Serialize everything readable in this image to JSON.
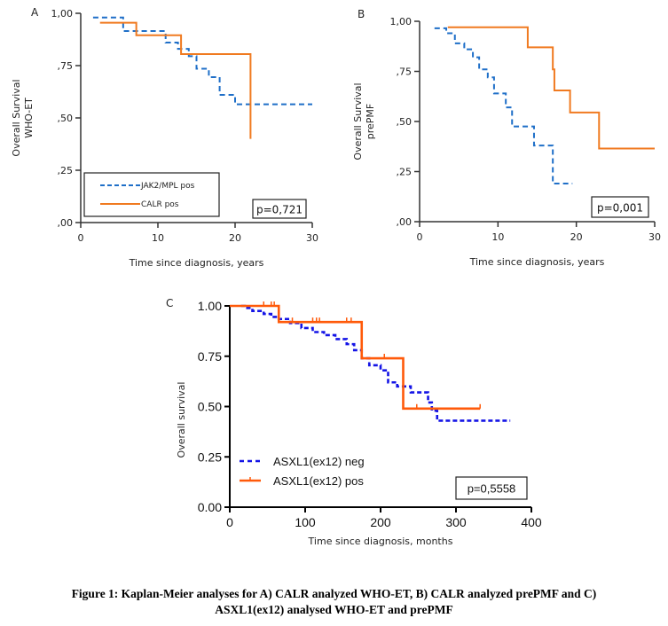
{
  "colors": {
    "blue_ab": "#1f6fc8",
    "orange": "#f07a20",
    "blue_c": "#1414e6",
    "orange_c": "#ff5a0a",
    "axis": "#333333"
  },
  "chart_data": [
    {
      "id": "A",
      "type": "line",
      "subtype": "kaplan-meier",
      "panel_label": "A",
      "title": "",
      "xlabel": "Time since diagnosis, years",
      "ylabel": "Overall Survival",
      "ylabel2": "WHO-ET",
      "xlim": [
        0,
        30
      ],
      "ylim": [
        0,
        1
      ],
      "xticks": [
        0,
        10,
        20,
        30
      ],
      "xtick_labels": [
        "0",
        "10",
        "20",
        "30"
      ],
      "yticks": [
        0,
        0.25,
        0.5,
        0.75,
        1.0
      ],
      "ytick_labels": [
        ",00",
        ",25",
        ",50",
        ",75",
        "1,00"
      ],
      "grid": false,
      "legend": {
        "placement": "bottom-left",
        "entries": [
          "JAK2/MPL pos",
          "CALR pos"
        ]
      },
      "annotation": "p=0,721",
      "series": [
        {
          "name": "JAK2/MPL pos",
          "style": "dashed",
          "color": "#1f6fc8",
          "steps": [
            [
              1.6,
              0.98
            ],
            [
              5.5,
              0.915
            ],
            [
              11.0,
              0.86
            ],
            [
              12.6,
              0.83
            ],
            [
              14.0,
              0.795
            ],
            [
              15.0,
              0.735
            ],
            [
              16.6,
              0.695
            ],
            [
              18.0,
              0.61
            ],
            [
              20.0,
              0.565
            ],
            [
              30.0,
              0.565
            ]
          ]
        },
        {
          "name": "CALR pos",
          "style": "solid",
          "color": "#f07a20",
          "steps": [
            [
              2.5,
              0.955
            ],
            [
              7.2,
              0.895
            ],
            [
              13.0,
              0.805
            ],
            [
              22.0,
              0.4
            ]
          ]
        }
      ]
    },
    {
      "id": "B",
      "type": "line",
      "subtype": "kaplan-meier",
      "panel_label": "B",
      "title": "",
      "xlabel": "Time since diagnosis, years",
      "ylabel": "Overall Survival",
      "ylabel2": "prePMF",
      "xlim": [
        0,
        30
      ],
      "ylim": [
        0,
        1
      ],
      "xticks": [
        0,
        10,
        20,
        30
      ],
      "xtick_labels": [
        "0",
        "10",
        "20",
        "30"
      ],
      "yticks": [
        0,
        0.25,
        0.5,
        0.75,
        1.0
      ],
      "ytick_labels": [
        ",00",
        ",25",
        ",50",
        ",75",
        "1,00"
      ],
      "grid": false,
      "legend": null,
      "annotation": "p=0,001",
      "series": [
        {
          "name": "JAK2/MPL pos",
          "style": "dashed",
          "color": "#1f6fc8",
          "steps": [
            [
              1.9,
              0.965
            ],
            [
              3.4,
              0.94
            ],
            [
              4.5,
              0.89
            ],
            [
              5.7,
              0.86
            ],
            [
              6.8,
              0.82
            ],
            [
              7.6,
              0.76
            ],
            [
              8.7,
              0.72
            ],
            [
              9.5,
              0.64
            ],
            [
              11.0,
              0.57
            ],
            [
              11.8,
              0.475
            ],
            [
              14.6,
              0.38
            ],
            [
              17.0,
              0.19
            ],
            [
              19.5,
              0.19
            ]
          ]
        },
        {
          "name": "CALR pos",
          "style": "solid",
          "color": "#f07a20",
          "steps": [
            [
              3.6,
              0.97
            ],
            [
              13.8,
              0.87
            ],
            [
              17.0,
              0.76
            ],
            [
              17.2,
              0.655
            ],
            [
              19.2,
              0.545
            ],
            [
              22.9,
              0.365
            ],
            [
              30.0,
              0.365
            ]
          ]
        }
      ]
    },
    {
      "id": "C",
      "type": "line",
      "subtype": "kaplan-meier",
      "panel_label": "C",
      "title": "",
      "xlabel": "Time since diagnosis, months",
      "ylabel": "Overall survival",
      "xlim": [
        0,
        400
      ],
      "ylim": [
        0,
        1
      ],
      "xticks": [
        0,
        100,
        200,
        300,
        400
      ],
      "xtick_labels": [
        "0",
        "100",
        "200",
        "300",
        "400"
      ],
      "yticks": [
        0,
        0.25,
        0.5,
        0.75,
        1.0
      ],
      "ytick_labels": [
        "0.00",
        "0.25",
        "0.50",
        "0.75",
        "1.00"
      ],
      "grid": false,
      "legend": {
        "placement": "bottom-left",
        "entries": [
          "ASXL1(ex12) neg",
          "ASXL1(ex12) pos"
        ]
      },
      "annotation": "p=0,5558",
      "series": [
        {
          "name": "ASXL1(ex12) neg",
          "style": "dashed-censored",
          "color": "#1414e6",
          "steps": [
            [
              15,
              1.0
            ],
            [
              20,
              0.99
            ],
            [
              30,
              0.975
            ],
            [
              45,
              0.96
            ],
            [
              55,
              0.945
            ],
            [
              65,
              0.935
            ],
            [
              80,
              0.915
            ],
            [
              95,
              0.89
            ],
            [
              110,
              0.87
            ],
            [
              125,
              0.855
            ],
            [
              140,
              0.835
            ],
            [
              155,
              0.81
            ],
            [
              165,
              0.78
            ],
            [
              175,
              0.74
            ],
            [
              185,
              0.705
            ],
            [
              200,
              0.68
            ],
            [
              210,
              0.62
            ],
            [
              222,
              0.6
            ],
            [
              240,
              0.57
            ],
            [
              263,
              0.52
            ],
            [
              268,
              0.48
            ],
            [
              275,
              0.43
            ],
            [
              372,
              0.43
            ]
          ]
        },
        {
          "name": "ASXL1(ex12) pos",
          "style": "solid-censored",
          "color": "#ff5a0a",
          "steps": [
            [
              0,
              1.0
            ],
            [
              65,
              0.92
            ],
            [
              175,
              0.74
            ],
            [
              230,
              0.49
            ],
            [
              332,
              0.49
            ]
          ],
          "censor_marks": [
            45,
            55,
            59,
            83,
            110,
            115,
            119,
            155,
            161,
            205,
            248,
            332
          ]
        }
      ]
    }
  ],
  "caption": {
    "line1": "Figure 1: Kaplan-Meier analyses for A) CALR analyzed WHO-ET, B) CALR analyzed prePMF and C)",
    "line2": "ASXL1(ex12) analysed WHO-ET and prePMF"
  }
}
